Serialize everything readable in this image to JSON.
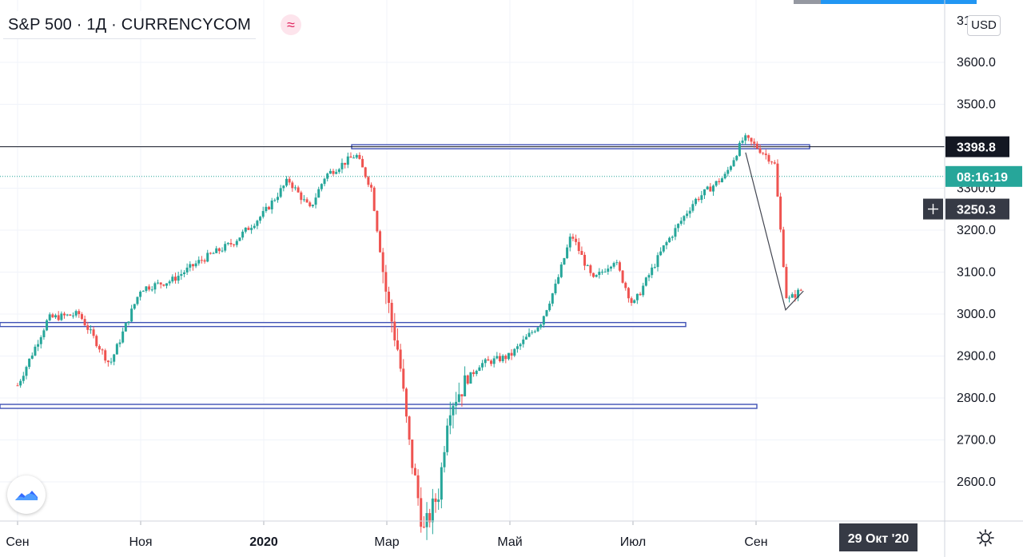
{
  "legend": {
    "title": "S&P 500 · 1Д · CURRENCYCOM",
    "icon": "waves-icon",
    "icon_glyph": "≈"
  },
  "currency": "USD",
  "time_axis_label": "29 Окт '20",
  "colors": {
    "up": "#26a69a",
    "down": "#ef5350",
    "level_line": "#3f51b5",
    "price_line": "#26a69a",
    "crosshair": "#363a45"
  },
  "chart_data": {
    "type": "candlestick",
    "title": "S&P 500",
    "x_ticks": [
      "Сен",
      "Ноя",
      "2020",
      "Мар",
      "Май",
      "Июл",
      "Сен"
    ],
    "y_ticks": [
      2600,
      2700,
      2800,
      2900,
      3000,
      3100,
      3200,
      3300,
      3400,
      3500,
      3600
    ],
    "y_top_tick_partial": "31",
    "ylim": [
      2525,
      3700
    ],
    "horizontal_levels": [
      3398.8,
      2975,
      2780
    ],
    "price_labels": [
      {
        "text": "3398.8",
        "value": 3398.8,
        "kind": "horizontal-line"
      },
      {
        "text": "08:16:19",
        "value": 3328,
        "kind": "countdown"
      },
      {
        "text": "3250.3",
        "value": 3250.3,
        "kind": "crosshair"
      }
    ],
    "trend_line": [
      {
        "month": 11.83,
        "value": 3385
      },
      {
        "month": 12.48,
        "value": 3010
      },
      {
        "month": 12.77,
        "value": 3055
      }
    ],
    "monthly_path": [
      {
        "month": 0,
        "value": 2830
      },
      {
        "month": 0.5,
        "value": 2990
      },
      {
        "month": 1,
        "value": 3000
      },
      {
        "month": 1.5,
        "value": 2880
      },
      {
        "month": 2,
        "value": 3060
      },
      {
        "month": 2.5,
        "value": 3080
      },
      {
        "month": 3,
        "value": 3130
      },
      {
        "month": 3.5,
        "value": 3170
      },
      {
        "month": 4,
        "value": 3240
      },
      {
        "month": 4.4,
        "value": 3320
      },
      {
        "month": 4.75,
        "value": 3250
      },
      {
        "month": 5,
        "value": 3330
      },
      {
        "month": 5.5,
        "value": 3380
      },
      {
        "month": 5.75,
        "value": 3300
      },
      {
        "month": 6,
        "value": 3040
      },
      {
        "month": 6.2,
        "value": 2900
      },
      {
        "month": 6.35,
        "value": 2700
      },
      {
        "month": 6.6,
        "value": 2480
      },
      {
        "month": 6.85,
        "value": 2580
      },
      {
        "month": 7,
        "value": 2780
      },
      {
        "month": 7.5,
        "value": 2880
      },
      {
        "month": 8,
        "value": 2900
      },
      {
        "month": 8.5,
        "value": 2980
      },
      {
        "month": 8.75,
        "value": 3070
      },
      {
        "month": 9,
        "value": 3190
      },
      {
        "month": 9.35,
        "value": 3080
      },
      {
        "month": 9.7,
        "value": 3130
      },
      {
        "month": 10,
        "value": 3020
      },
      {
        "month": 10.5,
        "value": 3160
      },
      {
        "month": 11,
        "value": 3270
      },
      {
        "month": 11.5,
        "value": 3330
      },
      {
        "month": 11.8,
        "value": 3420
      },
      {
        "month": 12,
        "value": 3400
      },
      {
        "month": 12.3,
        "value": 3360
      },
      {
        "month": 12.5,
        "value": 3030
      },
      {
        "month": 12.75,
        "value": 3060
      }
    ]
  }
}
